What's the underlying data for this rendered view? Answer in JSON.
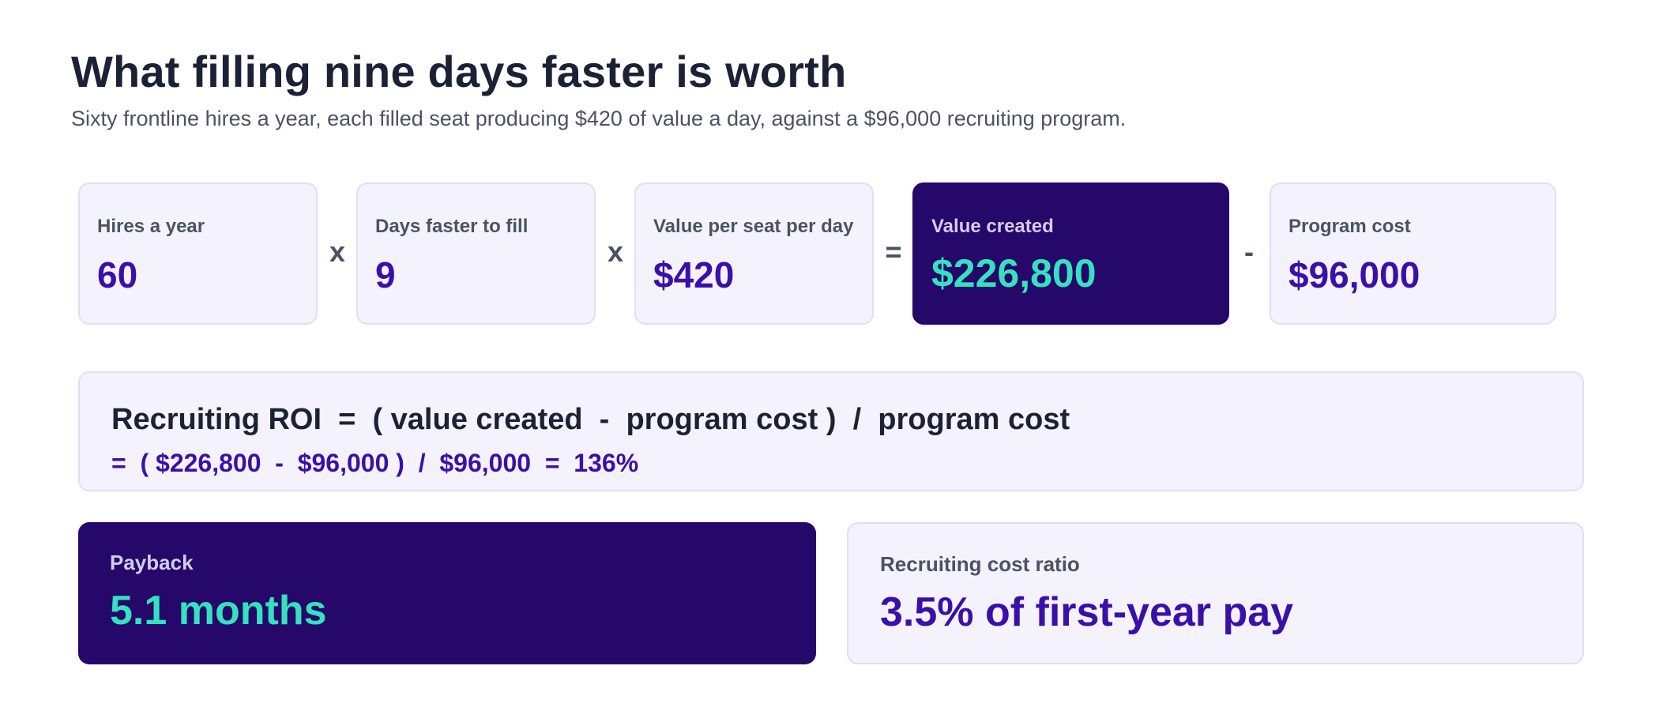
{
  "header": {
    "title": "What filling nine days faster is worth",
    "subtitle": "Sixty frontline hires a year, each filled seat producing $420 of value a day, against a $96,000 recruiting program."
  },
  "inputs": [
    {
      "label": "Hires a year",
      "value": "60"
    },
    {
      "label": "Days faster to fill",
      "value": "9"
    },
    {
      "label": "Value per seat per day",
      "value": "$420"
    },
    {
      "label": "Value created",
      "value": "$226,800"
    },
    {
      "label": "Program cost",
      "value": "$96,000"
    }
  ],
  "operators": [
    "x",
    "x",
    "=",
    "-"
  ],
  "formula": {
    "expression": "Recruiting ROI  =  ( value created  -  program cost )  /  program cost",
    "calculation": "=  ( $226,800  -  $96,000 )  /  $96,000  =  136%"
  },
  "results": [
    {
      "label": "Payback",
      "value": "5.1 months"
    },
    {
      "label": "Recruiting cost ratio",
      "value": "3.5% of first-year pay"
    }
  ],
  "colors": {
    "accent_dark": "#26076a",
    "accent_value": "#3a10a8",
    "highlight": "#34e1c0",
    "card_bg": "#f4f2fd"
  }
}
